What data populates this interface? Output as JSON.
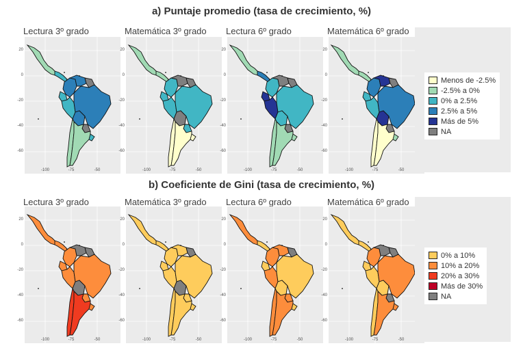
{
  "section_a": {
    "title": "a) Puntaje promedio (tasa de crecimiento, %)",
    "panels": [
      {
        "title": "Lectura 3º grado"
      },
      {
        "title": "Matemática 3º grado"
      },
      {
        "title": "Lectura 6º grado"
      },
      {
        "title": "Matemática 6º grado"
      }
    ],
    "legend": [
      {
        "label": "Menos de -2.5%",
        "color": "#ffffcc"
      },
      {
        "label": "-2.5% a 0%",
        "color": "#a1dab4"
      },
      {
        "label": "0% a 2.5%",
        "color": "#41b6c4"
      },
      {
        "label": "2.5% a 5%",
        "color": "#2c7fb8"
      },
      {
        "label": "Más de 5%",
        "color": "#253494"
      },
      {
        "label": "NA",
        "color": "#7f7f7f"
      }
    ]
  },
  "section_b": {
    "title": "b) Coeficiente de Gini (tasa de crecimiento, %)",
    "panels": [
      {
        "title": "Lectura 3º grado"
      },
      {
        "title": "Matemática 3º grado"
      },
      {
        "title": "Lectura 6º grado"
      },
      {
        "title": "Matemática 6º grado"
      }
    ],
    "legend": [
      {
        "label": "0% a 10%",
        "color": "#fecc5c"
      },
      {
        "label": "10% a 20%",
        "color": "#fd8d3c"
      },
      {
        "label": "20% a 30%",
        "color": "#f03b20"
      },
      {
        "label": "Más de 30%",
        "color": "#bd0026"
      },
      {
        "label": "NA",
        "color": "#7f7f7f"
      }
    ]
  },
  "axes": {
    "y_ticks": [
      "20",
      "0",
      "-20",
      "-40",
      "-60"
    ],
    "x_ticks": [
      "-100",
      "-75",
      "-50"
    ]
  }
}
